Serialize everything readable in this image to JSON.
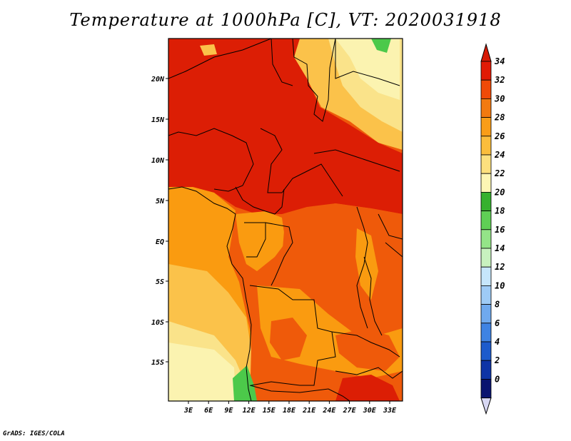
{
  "title": "Temperature at 1000hPa [C], VT: 2020031918",
  "credit": "GrADS: IGES/COLA",
  "map": {
    "lat_labels": [
      "20N",
      "15N",
      "10N",
      "5N",
      "EQ",
      "5S",
      "10S",
      "15S"
    ],
    "lon_labels": [
      "3E",
      "6E",
      "9E",
      "12E",
      "15E",
      "18E",
      "21E",
      "24E",
      "27E",
      "30E",
      "33E"
    ],
    "colors": {
      "very_hot": "#dc1e05",
      "hot": "#ef5a0a",
      "warm": "#fa9b10",
      "mild": "#fbc24a",
      "cool": "#fae38a",
      "pale": "#fbf3b0",
      "green": "#4cc94a",
      "border": "#000000"
    }
  },
  "colorbar": {
    "labels": [
      "34",
      "32",
      "30",
      "28",
      "26",
      "24",
      "22",
      "20",
      "18",
      "16",
      "14",
      "12",
      "10",
      "8",
      "6",
      "4",
      "2",
      "0"
    ],
    "colors": [
      "#e11a05",
      "#f04a08",
      "#f27a10",
      "#f99d18",
      "#fbbd3c",
      "#fde07e",
      "#fdf6b4",
      "#36b12e",
      "#5fcf55",
      "#94e488",
      "#c8f2bf",
      "#c6e6fb",
      "#9ecbf6",
      "#6fa9ee",
      "#3f83e3",
      "#1d5bcc",
      "#0e34a6",
      "#0a1470"
    ],
    "top_arrow_color": "#d71a05",
    "bottom_arrow_color": "#d8d8f4"
  }
}
